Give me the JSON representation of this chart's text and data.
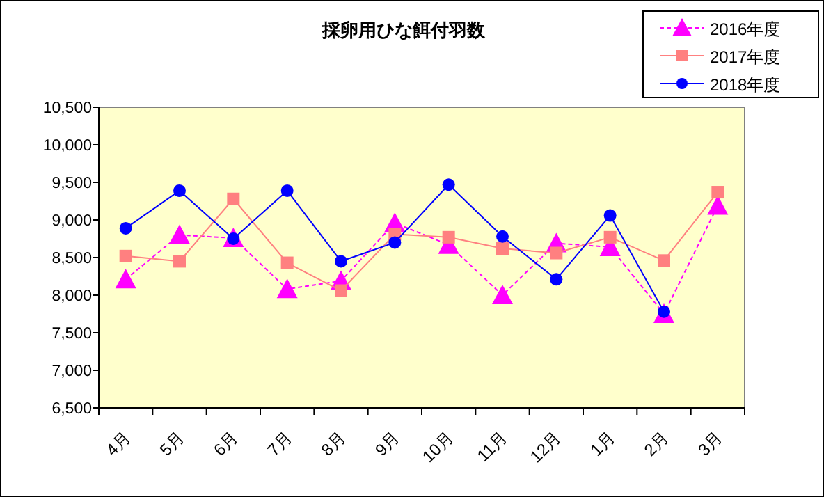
{
  "chart_data": {
    "type": "line",
    "title": "採卵用ひな餌付羽数",
    "categories": [
      "4月",
      "5月",
      "6月",
      "7月",
      "8月",
      "9月",
      "10月",
      "11月",
      "12月",
      "1月",
      "2月",
      "3月"
    ],
    "series": [
      {
        "name": "2016年度",
        "color": "#ff00ff",
        "marker": "triangle",
        "line_style": "dashed",
        "values": [
          8210,
          8800,
          8760,
          8080,
          8190,
          8960,
          8670,
          8000,
          8690,
          8640,
          7750,
          9190
        ]
      },
      {
        "name": "2017年度",
        "color": "#ff8080",
        "marker": "square",
        "line_style": "solid",
        "values": [
          8520,
          8450,
          9280,
          8430,
          8060,
          8810,
          8770,
          8620,
          8560,
          8770,
          8460,
          9370
        ]
      },
      {
        "name": "2018年度",
        "color": "#0000ff",
        "marker": "circle",
        "line_style": "solid",
        "values": [
          8890,
          9390,
          8750,
          9390,
          8450,
          8700,
          9470,
          8780,
          8210,
          9060,
          7780,
          null
        ]
      }
    ],
    "ylim": [
      6500,
      10500
    ],
    "yticks": [
      {
        "value": 6500,
        "label": "6,500"
      },
      {
        "value": 7000,
        "label": "7,000"
      },
      {
        "value": 7500,
        "label": "7,500"
      },
      {
        "value": 8000,
        "label": "8,000"
      },
      {
        "value": 8500,
        "label": "8,500"
      },
      {
        "value": 9000,
        "label": "9,000"
      },
      {
        "value": 9500,
        "label": "9,500"
      },
      {
        "value": 10000,
        "label": "10,000"
      },
      {
        "value": 10500,
        "label": "10,500"
      }
    ],
    "grid": false,
    "legend": "top right"
  }
}
